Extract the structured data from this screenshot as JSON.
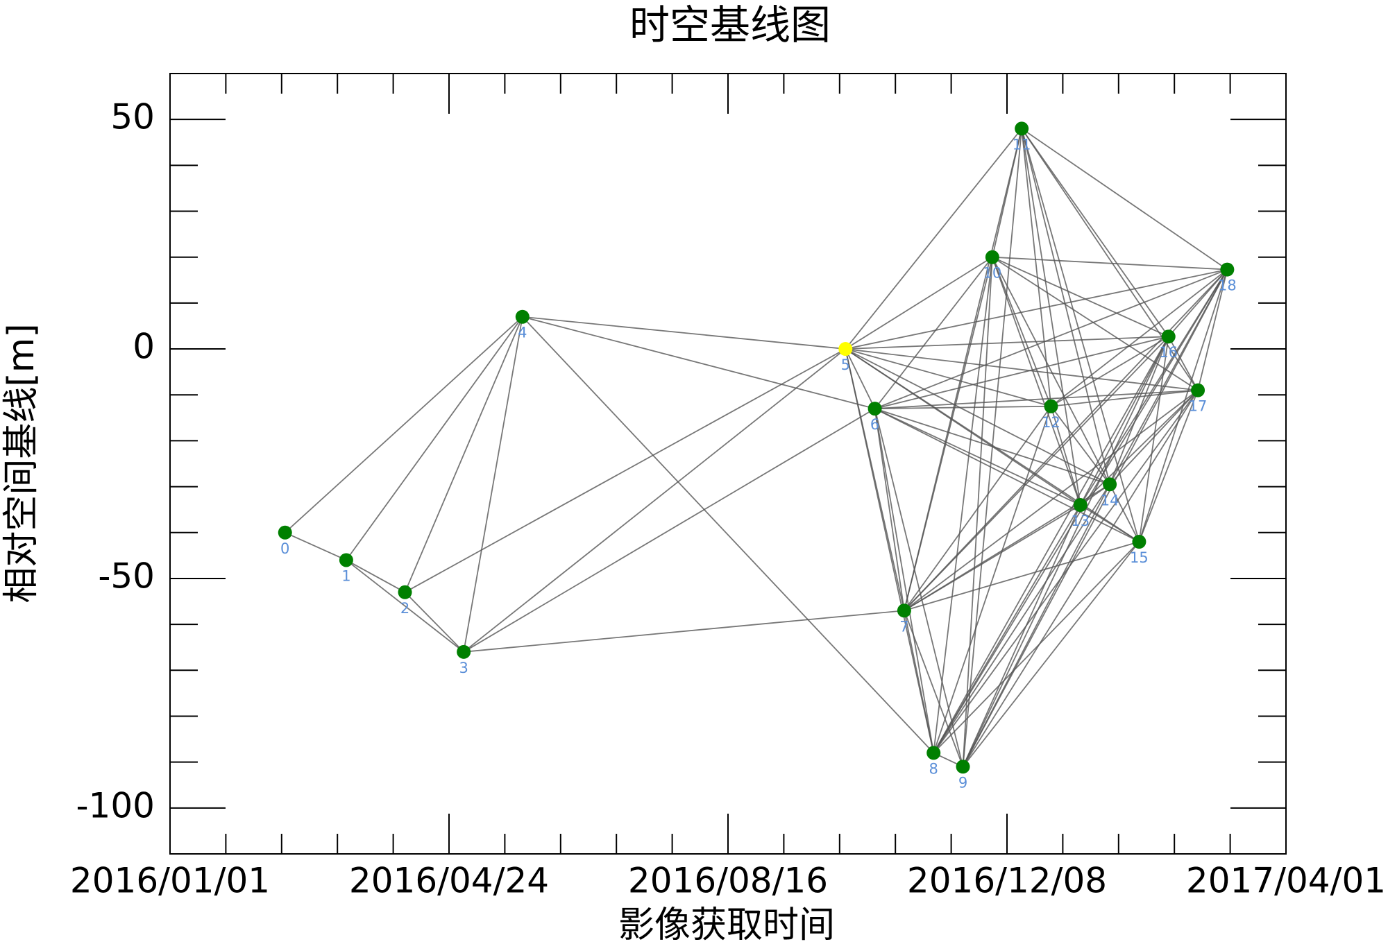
{
  "chart_data": {
    "type": "scatter",
    "title": "时空基线图",
    "x_label": "影像获取时间",
    "y_label": "相对空间基线[m]",
    "x": [
      "2016/02/17",
      "2016/03/13",
      "2016/04/06",
      "2016/04/30",
      "2016/05/24",
      "2016/10/03",
      "2016/10/15",
      "2016/10/27",
      "2016/11/08",
      "2016/11/20",
      "2016/12/02",
      "2016/12/14",
      "2016/12/26",
      "2017/01/07",
      "2017/01/19",
      "2017/01/31",
      "2017/02/12",
      "2017/02/24",
      "2017/03/08"
    ],
    "values": [
      -40,
      -46,
      -53,
      -66,
      7,
      0,
      -13,
      -57,
      -88,
      -91,
      20,
      48,
      -12.5,
      -34,
      -29.5,
      -42,
      2.7,
      -9,
      17.3
    ],
    "point_labels": [
      "0",
      "1",
      "2",
      "3",
      "4",
      "5",
      "6",
      "7",
      "8",
      "9",
      "10",
      "11",
      "12",
      "13",
      "14",
      "15",
      "16",
      "17",
      "18"
    ],
    "colors": [
      "#008000",
      "#008000",
      "#008000",
      "#008000",
      "#008000",
      "#ffff00",
      "#008000",
      "#008000",
      "#008000",
      "#008000",
      "#008000",
      "#008000",
      "#008000",
      "#008000",
      "#008000",
      "#008000",
      "#008000",
      "#008000",
      "#008000"
    ],
    "edge_color": "#555555",
    "label_color": "#5b8fd8",
    "edges": [
      [
        0,
        1
      ],
      [
        0,
        4
      ],
      [
        1,
        2
      ],
      [
        1,
        4
      ],
      [
        1,
        3
      ],
      [
        2,
        3
      ],
      [
        2,
        4
      ],
      [
        3,
        4
      ],
      [
        3,
        5
      ],
      [
        3,
        6
      ],
      [
        3,
        7
      ],
      [
        2,
        5
      ],
      [
        4,
        5
      ],
      [
        4,
        6
      ],
      [
        4,
        8
      ],
      [
        5,
        6
      ],
      [
        5,
        7
      ],
      [
        5,
        8
      ],
      [
        5,
        10
      ],
      [
        5,
        11
      ],
      [
        5,
        12
      ],
      [
        5,
        13
      ],
      [
        5,
        14
      ],
      [
        5,
        15
      ],
      [
        5,
        16
      ],
      [
        5,
        17
      ],
      [
        5,
        18
      ],
      [
        6,
        7
      ],
      [
        6,
        8
      ],
      [
        6,
        9
      ],
      [
        6,
        10
      ],
      [
        6,
        12
      ],
      [
        6,
        13
      ],
      [
        6,
        14
      ],
      [
        6,
        15
      ],
      [
        6,
        16
      ],
      [
        6,
        17
      ],
      [
        6,
        18
      ],
      [
        7,
        8
      ],
      [
        7,
        9
      ],
      [
        7,
        10
      ],
      [
        7,
        11
      ],
      [
        7,
        12
      ],
      [
        7,
        13
      ],
      [
        7,
        14
      ],
      [
        7,
        15
      ],
      [
        7,
        16
      ],
      [
        7,
        17
      ],
      [
        7,
        18
      ],
      [
        8,
        9
      ],
      [
        8,
        10
      ],
      [
        8,
        12
      ],
      [
        8,
        13
      ],
      [
        8,
        14
      ],
      [
        8,
        15
      ],
      [
        8,
        16
      ],
      [
        8,
        17
      ],
      [
        8,
        18
      ],
      [
        9,
        10
      ],
      [
        9,
        11
      ],
      [
        9,
        13
      ],
      [
        9,
        14
      ],
      [
        9,
        15
      ],
      [
        9,
        16
      ],
      [
        9,
        17
      ],
      [
        9,
        18
      ],
      [
        10,
        11
      ],
      [
        10,
        12
      ],
      [
        10,
        13
      ],
      [
        10,
        14
      ],
      [
        10,
        16
      ],
      [
        10,
        17
      ],
      [
        10,
        18
      ],
      [
        11,
        12
      ],
      [
        11,
        13
      ],
      [
        11,
        14
      ],
      [
        11,
        15
      ],
      [
        11,
        16
      ],
      [
        11,
        17
      ],
      [
        11,
        18
      ],
      [
        12,
        13
      ],
      [
        12,
        14
      ],
      [
        12,
        16
      ],
      [
        12,
        17
      ],
      [
        12,
        18
      ],
      [
        13,
        14
      ],
      [
        13,
        15
      ],
      [
        13,
        16
      ],
      [
        13,
        17
      ],
      [
        13,
        18
      ],
      [
        14,
        15
      ],
      [
        14,
        16
      ],
      [
        14,
        17
      ],
      [
        14,
        18
      ],
      [
        15,
        16
      ],
      [
        15,
        17
      ],
      [
        15,
        18
      ],
      [
        16,
        17
      ],
      [
        16,
        18
      ],
      [
        17,
        18
      ]
    ],
    "xlim": [
      "2016/01/01",
      "2017/04/01"
    ],
    "xticks": [
      "2016/01/01",
      "2016/04/24",
      "2016/08/16",
      "2016/12/08",
      "2017/04/01"
    ],
    "ylim": [
      -110,
      60
    ],
    "yticks": [
      50,
      0,
      -50,
      -100
    ],
    "minor_divisions": 5
  }
}
